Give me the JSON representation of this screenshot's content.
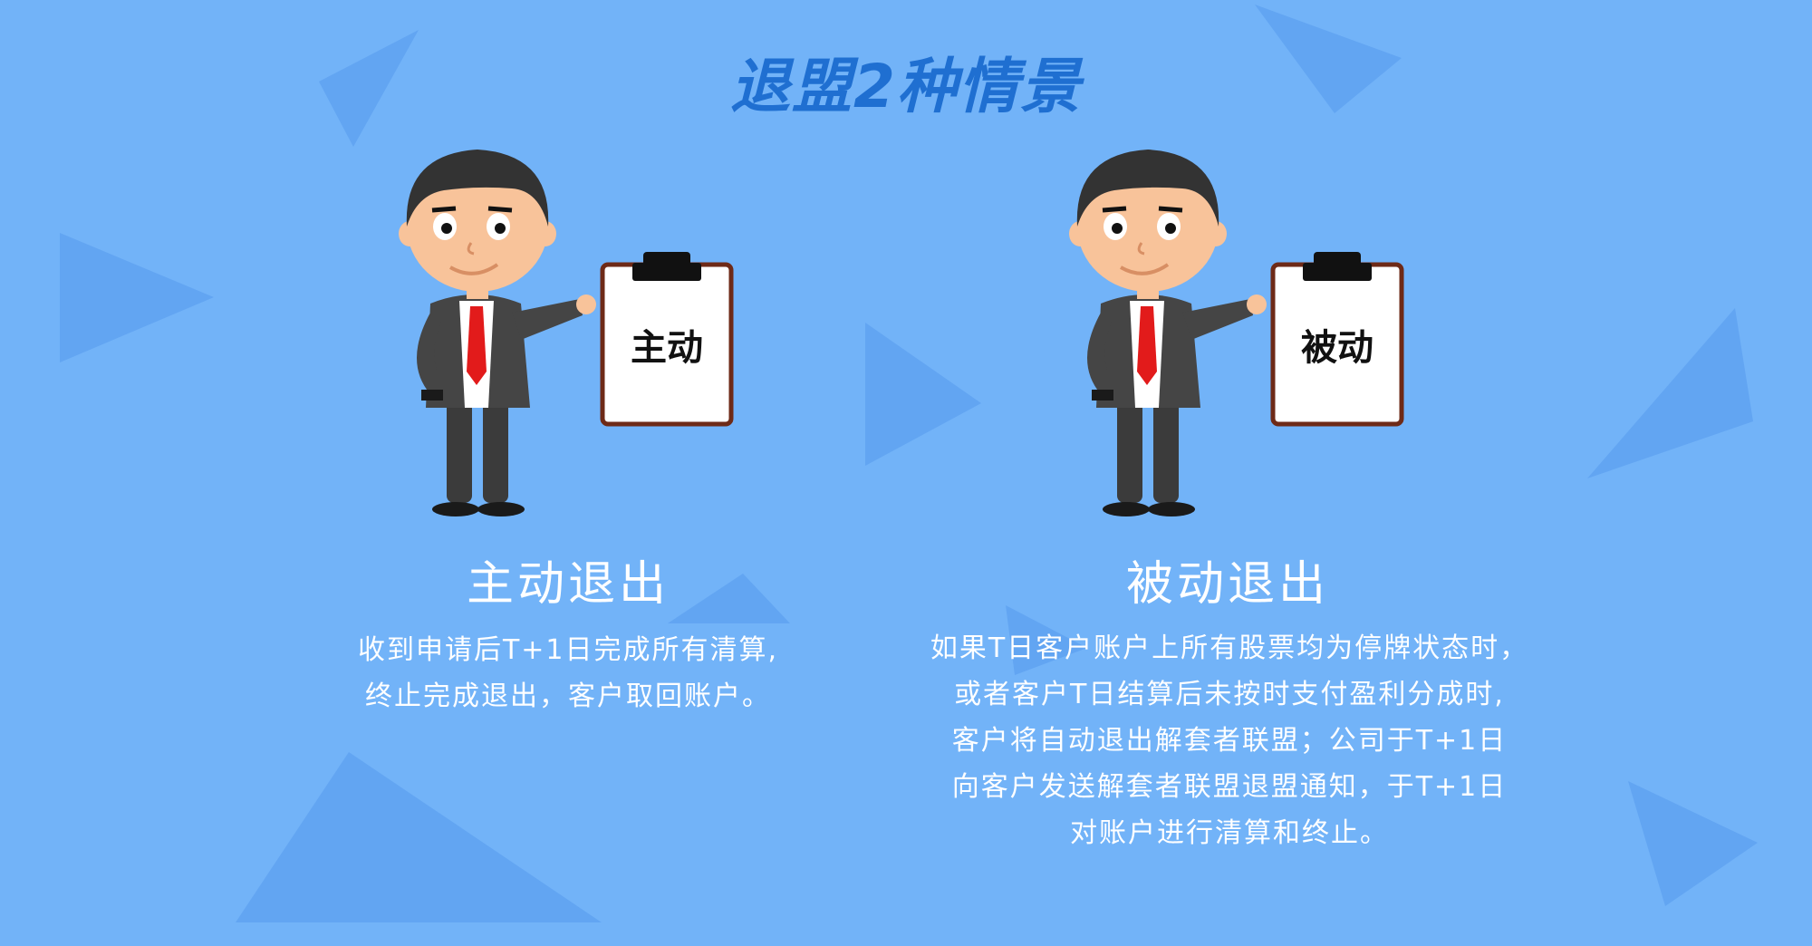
{
  "title": "退盟2种情景",
  "cards": [
    {
      "board_label": "主动",
      "heading": "主动退出",
      "lines": [
        "收到申请后T+1日完成所有清算,",
        "终止完成退出，客户取回账户。"
      ]
    },
    {
      "board_label": "被动",
      "heading": "被动退出",
      "lines": [
        "如果T日客户账户上所有股票均为停牌状态时，",
        "或者客户T日结算后未按时支付盈利分成时,",
        "客户将自动退出解套者联盟；公司于T+1日",
        "向客户发送解套者联盟退盟通知，于T+1日",
        "对账户进行清算和终止。"
      ]
    }
  ],
  "colors": {
    "background": "#72b3f8",
    "title": "#1f6fd1",
    "triangle": "#5d9ff0",
    "text": "#ffffff"
  }
}
